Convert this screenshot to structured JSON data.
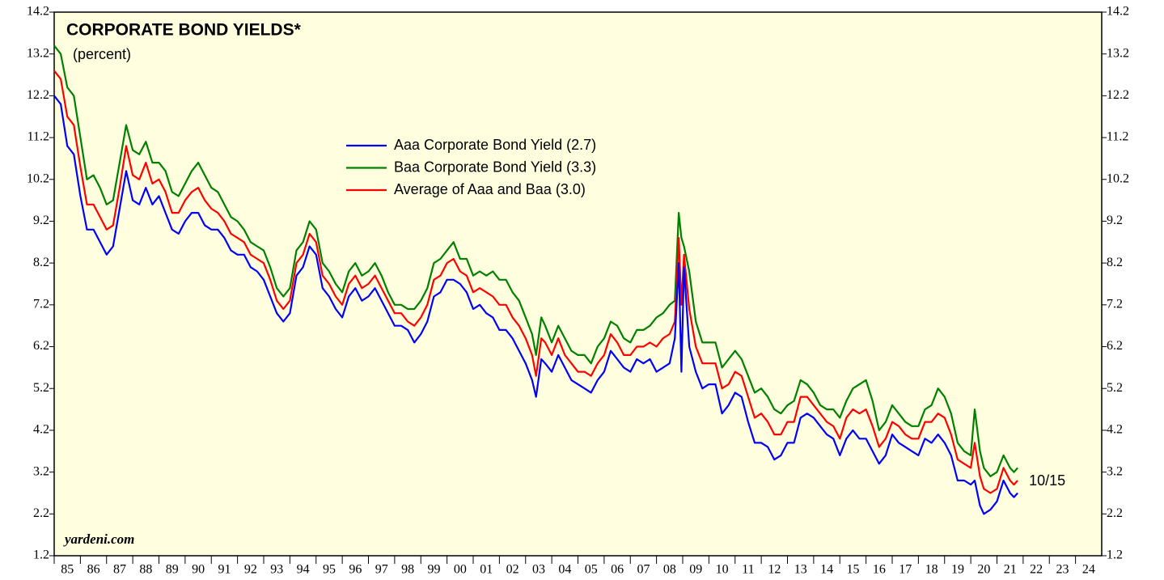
{
  "chart_data": {
    "type": "line",
    "title": "CORPORATE BOND YIELDS*",
    "subtitle": "(percent)",
    "source": "yardeni.com",
    "annotation": "10/15",
    "x": [
      1985.0,
      1985.25,
      1985.5,
      1985.75,
      1986.0,
      1986.25,
      1986.5,
      1986.75,
      1987.0,
      1987.25,
      1987.5,
      1987.75,
      1988.0,
      1988.25,
      1988.5,
      1988.75,
      1989.0,
      1989.25,
      1989.5,
      1989.75,
      1990.0,
      1990.25,
      1990.5,
      1990.75,
      1991.0,
      1991.25,
      1991.5,
      1991.75,
      1992.0,
      1992.25,
      1992.5,
      1992.75,
      1993.0,
      1993.25,
      1993.5,
      1993.75,
      1994.0,
      1994.25,
      1994.5,
      1994.75,
      1995.0,
      1995.25,
      1995.5,
      1995.75,
      1996.0,
      1996.25,
      1996.5,
      1996.75,
      1997.0,
      1997.25,
      1997.5,
      1997.75,
      1998.0,
      1998.25,
      1998.5,
      1998.75,
      1999.0,
      1999.25,
      1999.5,
      1999.75,
      2000.0,
      2000.25,
      2000.5,
      2000.75,
      2001.0,
      2001.25,
      2001.5,
      2001.75,
      2002.0,
      2002.25,
      2002.5,
      2002.75,
      2003.0,
      2003.25,
      2003.4,
      2003.6,
      2003.75,
      2004.0,
      2004.25,
      2004.5,
      2004.75,
      2005.0,
      2005.25,
      2005.5,
      2005.75,
      2006.0,
      2006.25,
      2006.5,
      2006.75,
      2007.0,
      2007.25,
      2007.5,
      2007.75,
      2008.0,
      2008.25,
      2008.5,
      2008.7,
      2008.85,
      2008.95,
      2009.05,
      2009.25,
      2009.5,
      2009.75,
      2010.0,
      2010.25,
      2010.5,
      2010.75,
      2011.0,
      2011.25,
      2011.5,
      2011.75,
      2012.0,
      2012.25,
      2012.5,
      2012.75,
      2013.0,
      2013.25,
      2013.5,
      2013.75,
      2014.0,
      2014.25,
      2014.5,
      2014.75,
      2015.0,
      2015.25,
      2015.5,
      2015.75,
      2016.0,
      2016.25,
      2016.5,
      2016.75,
      2017.0,
      2017.25,
      2017.5,
      2017.75,
      2018.0,
      2018.25,
      2018.5,
      2018.75,
      2019.0,
      2019.25,
      2019.5,
      2019.75,
      2020.0,
      2020.15,
      2020.35,
      2020.5,
      2020.75,
      2021.0,
      2021.25,
      2021.5,
      2021.65,
      2021.79
    ],
    "series": [
      {
        "name": "Aaa Corporate Bond Yield (2.7)",
        "color": "#0000ff",
        "values": [
          12.2,
          12.0,
          11.0,
          10.8,
          9.8,
          9.0,
          9.0,
          8.7,
          8.4,
          8.6,
          9.5,
          10.4,
          9.7,
          9.6,
          10.0,
          9.6,
          9.8,
          9.4,
          9.0,
          8.9,
          9.2,
          9.4,
          9.4,
          9.1,
          9.0,
          9.0,
          8.8,
          8.5,
          8.4,
          8.4,
          8.1,
          8.0,
          7.8,
          7.4,
          7.0,
          6.8,
          7.0,
          7.9,
          8.1,
          8.6,
          8.4,
          7.6,
          7.4,
          7.1,
          6.9,
          7.4,
          7.6,
          7.3,
          7.4,
          7.6,
          7.3,
          7.0,
          6.7,
          6.7,
          6.6,
          6.3,
          6.5,
          6.8,
          7.4,
          7.5,
          7.8,
          7.8,
          7.7,
          7.5,
          7.1,
          7.2,
          7.0,
          6.9,
          6.6,
          6.6,
          6.4,
          6.1,
          5.8,
          5.4,
          5.0,
          5.9,
          5.8,
          5.6,
          6.0,
          5.7,
          5.4,
          5.3,
          5.2,
          5.1,
          5.4,
          5.6,
          6.1,
          5.9,
          5.7,
          5.6,
          5.9,
          5.8,
          5.9,
          5.6,
          5.7,
          5.8,
          6.4,
          8.2,
          5.6,
          8.1,
          6.2,
          5.6,
          5.2,
          5.3,
          5.3,
          4.6,
          4.8,
          5.1,
          5.0,
          4.4,
          3.9,
          3.9,
          3.8,
          3.5,
          3.6,
          3.9,
          3.9,
          4.5,
          4.6,
          4.5,
          4.3,
          4.1,
          4.0,
          3.6,
          4.0,
          4.2,
          4.0,
          4.0,
          3.7,
          3.4,
          3.6,
          4.1,
          3.9,
          3.8,
          3.7,
          3.6,
          4.0,
          3.9,
          4.1,
          3.9,
          3.6,
          3.0,
          3.0,
          2.9,
          3.0,
          2.4,
          2.2,
          2.3,
          2.5,
          3.0,
          2.7,
          2.6,
          2.7
        ]
      },
      {
        "name": "Baa Corporate Bond Yield (3.3)",
        "color": "#008000",
        "values": [
          13.4,
          13.2,
          12.4,
          12.2,
          11.2,
          10.2,
          10.3,
          10.0,
          9.6,
          9.7,
          10.6,
          11.5,
          10.9,
          10.8,
          11.1,
          10.6,
          10.6,
          10.4,
          9.9,
          9.8,
          10.1,
          10.4,
          10.6,
          10.3,
          10.0,
          9.9,
          9.6,
          9.3,
          9.2,
          9.0,
          8.7,
          8.6,
          8.5,
          8.1,
          7.6,
          7.4,
          7.6,
          8.5,
          8.7,
          9.2,
          9.0,
          8.2,
          8.0,
          7.7,
          7.5,
          8.0,
          8.2,
          7.9,
          8.0,
          8.2,
          7.9,
          7.5,
          7.2,
          7.2,
          7.1,
          7.1,
          7.3,
          7.6,
          8.2,
          8.3,
          8.5,
          8.7,
          8.3,
          8.3,
          7.9,
          8.0,
          7.9,
          8.0,
          7.8,
          7.8,
          7.5,
          7.3,
          6.9,
          6.5,
          6.0,
          6.9,
          6.7,
          6.3,
          6.7,
          6.4,
          6.1,
          6.0,
          6.0,
          5.8,
          6.2,
          6.4,
          6.8,
          6.7,
          6.4,
          6.3,
          6.6,
          6.6,
          6.7,
          6.9,
          7.0,
          7.2,
          7.3,
          9.4,
          8.8,
          8.6,
          8.0,
          6.8,
          6.3,
          6.3,
          6.3,
          5.7,
          5.9,
          6.1,
          5.9,
          5.5,
          5.1,
          5.2,
          5.0,
          4.7,
          4.6,
          4.8,
          4.9,
          5.4,
          5.3,
          5.1,
          4.8,
          4.7,
          4.7,
          4.5,
          4.9,
          5.2,
          5.3,
          5.4,
          4.9,
          4.2,
          4.4,
          4.8,
          4.6,
          4.4,
          4.3,
          4.3,
          4.7,
          4.8,
          5.2,
          5.0,
          4.6,
          3.9,
          3.7,
          3.6,
          4.7,
          3.7,
          3.3,
          3.1,
          3.2,
          3.6,
          3.3,
          3.2,
          3.3
        ]
      },
      {
        "name": "Average of Aaa and Baa (3.0)",
        "color": "#ff0000",
        "values": [
          12.8,
          12.6,
          11.7,
          11.5,
          10.5,
          9.6,
          9.6,
          9.3,
          9.0,
          9.1,
          10.0,
          11.0,
          10.3,
          10.2,
          10.6,
          10.1,
          10.2,
          9.9,
          9.4,
          9.4,
          9.7,
          9.9,
          10.0,
          9.7,
          9.5,
          9.4,
          9.2,
          8.9,
          8.8,
          8.7,
          8.4,
          8.3,
          8.2,
          7.8,
          7.3,
          7.1,
          7.3,
          8.2,
          8.4,
          8.9,
          8.7,
          7.9,
          7.7,
          7.4,
          7.2,
          7.7,
          7.9,
          7.6,
          7.7,
          7.9,
          7.6,
          7.3,
          7.0,
          7.0,
          6.8,
          6.7,
          6.9,
          7.2,
          7.8,
          7.9,
          8.2,
          8.3,
          8.0,
          7.9,
          7.5,
          7.6,
          7.5,
          7.4,
          7.2,
          7.2,
          6.9,
          6.7,
          6.4,
          6.0,
          5.5,
          6.4,
          6.3,
          6.0,
          6.4,
          6.0,
          5.8,
          5.6,
          5.6,
          5.5,
          5.8,
          6.0,
          6.5,
          6.3,
          6.0,
          6.0,
          6.2,
          6.2,
          6.3,
          6.2,
          6.4,
          6.5,
          6.8,
          8.8,
          7.2,
          8.4,
          7.1,
          6.2,
          5.8,
          5.8,
          5.8,
          5.2,
          5.3,
          5.6,
          5.5,
          5.0,
          4.5,
          4.6,
          4.4,
          4.1,
          4.1,
          4.4,
          4.4,
          5.0,
          5.0,
          4.8,
          4.6,
          4.4,
          4.3,
          4.0,
          4.5,
          4.7,
          4.6,
          4.7,
          4.3,
          3.8,
          4.0,
          4.4,
          4.3,
          4.1,
          4.0,
          4.0,
          4.4,
          4.4,
          4.6,
          4.5,
          4.1,
          3.5,
          3.4,
          3.3,
          3.9,
          3.1,
          2.8,
          2.7,
          2.8,
          3.3,
          3.0,
          2.9,
          3.0
        ]
      }
    ],
    "xlim": [
      1985,
      2025
    ],
    "xticks": [
      {
        "value": 1985,
        "label": "85"
      },
      {
        "value": 1986,
        "label": "86"
      },
      {
        "value": 1987,
        "label": "87"
      },
      {
        "value": 1988,
        "label": "88"
      },
      {
        "value": 1989,
        "label": "89"
      },
      {
        "value": 1990,
        "label": "90"
      },
      {
        "value": 1991,
        "label": "91"
      },
      {
        "value": 1992,
        "label": "92"
      },
      {
        "value": 1993,
        "label": "93"
      },
      {
        "value": 1994,
        "label": "94"
      },
      {
        "value": 1995,
        "label": "95"
      },
      {
        "value": 1996,
        "label": "96"
      },
      {
        "value": 1997,
        "label": "97"
      },
      {
        "value": 1998,
        "label": "98"
      },
      {
        "value": 1999,
        "label": "99"
      },
      {
        "value": 2000,
        "label": "00"
      },
      {
        "value": 2001,
        "label": "01"
      },
      {
        "value": 2002,
        "label": "02"
      },
      {
        "value": 2003,
        "label": "03"
      },
      {
        "value": 2004,
        "label": "04"
      },
      {
        "value": 2005,
        "label": "05"
      },
      {
        "value": 2006,
        "label": "06"
      },
      {
        "value": 2007,
        "label": "07"
      },
      {
        "value": 2008,
        "label": "08"
      },
      {
        "value": 2009,
        "label": "09"
      },
      {
        "value": 2010,
        "label": "10"
      },
      {
        "value": 2011,
        "label": "11"
      },
      {
        "value": 2012,
        "label": "12"
      },
      {
        "value": 2013,
        "label": "13"
      },
      {
        "value": 2014,
        "label": "14"
      },
      {
        "value": 2015,
        "label": "15"
      },
      {
        "value": 2016,
        "label": "16"
      },
      {
        "value": 2017,
        "label": "17"
      },
      {
        "value": 2018,
        "label": "18"
      },
      {
        "value": 2019,
        "label": "19"
      },
      {
        "value": 2020,
        "label": "20"
      },
      {
        "value": 2021,
        "label": "21"
      },
      {
        "value": 2022,
        "label": "22"
      },
      {
        "value": 2023,
        "label": "23"
      },
      {
        "value": 2024,
        "label": "24"
      }
    ],
    "ylim": [
      1.2,
      14.2
    ],
    "yticks": [
      1.2,
      2.2,
      3.2,
      4.2,
      5.2,
      6.2,
      7.2,
      8.2,
      9.2,
      10.2,
      11.2,
      12.2,
      13.2,
      14.2
    ],
    "grid": false
  }
}
